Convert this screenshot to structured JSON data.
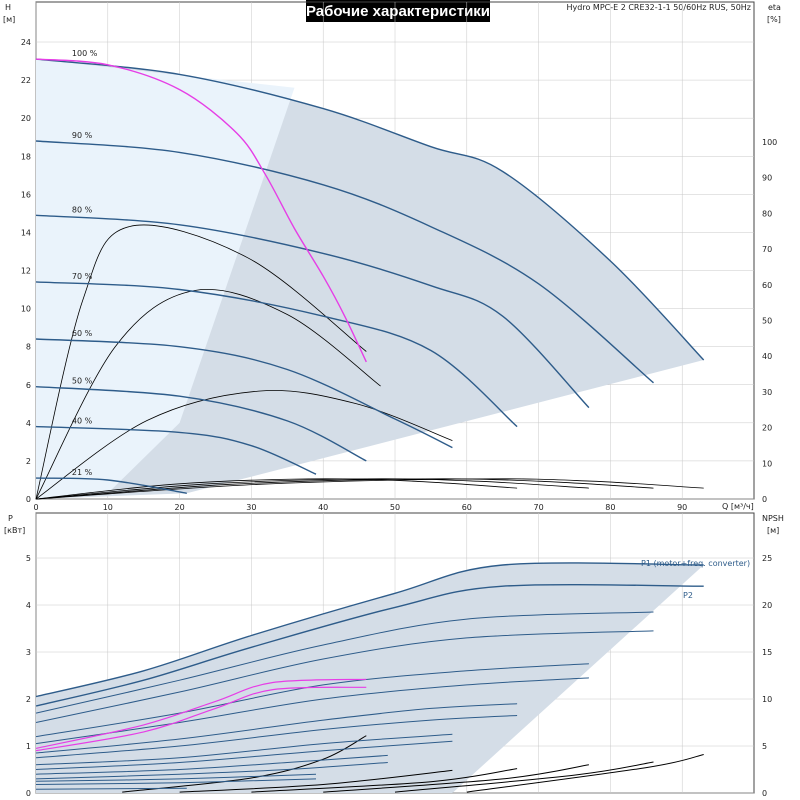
{
  "title": "Рабочие характеристики",
  "model": "Hydro MPC-E 2 CRE32-1-1 50/60Hz RUS, 50Hz",
  "colors": {
    "blue_curve": "#2e5c8a",
    "black_curve": "#000000",
    "magenta": "#e63ee6",
    "fill_dark": "#d4dde7",
    "fill_light": "#eaf3fb",
    "grid": "#c8c8c8"
  },
  "chart_data": [
    {
      "type": "line",
      "name": "head",
      "y_left_label": "H",
      "y_left_unit": "[м]",
      "y_right_label": "eta",
      "y_right_unit": "[%]",
      "x_label": "Q [м³/ч]",
      "xlim": [
        0,
        100
      ],
      "ylim": [
        0,
        24
      ],
      "eta_lim": [
        0,
        100
      ],
      "x_ticks": [
        "0",
        "10",
        "20",
        "30",
        "40",
        "50",
        "60",
        "70",
        "80",
        "90"
      ],
      "y_ticks": [
        "0",
        "2",
        "4",
        "6",
        "8",
        "10",
        "12",
        "14",
        "16",
        "18",
        "20",
        "22",
        "24"
      ],
      "eta_ticks": [
        "0",
        "10",
        "20",
        "30",
        "40",
        "50",
        "60",
        "70",
        "80",
        "90",
        "100"
      ],
      "speed_labels": [
        "100 %",
        "90 %",
        "80 %",
        "70 %",
        "60 %",
        "50 %",
        "40 %",
        "21 %"
      ],
      "speed_curves": [
        {
          "label": "100 %",
          "points": [
            [
              0,
              23.1
            ],
            [
              20,
              22.3
            ],
            [
              40,
              20.5
            ],
            [
              55,
              18.5
            ],
            [
              65,
              17.2
            ],
            [
              80,
              12.5
            ],
            [
              93,
              7.3
            ]
          ]
        },
        {
          "label": "90 %",
          "points": [
            [
              0,
              18.8
            ],
            [
              20,
              18.2
            ],
            [
              40,
              16.5
            ],
            [
              55,
              14.3
            ],
            [
              70,
              11.3
            ],
            [
              86,
              6.1
            ]
          ]
        },
        {
          "label": "80 %",
          "points": [
            [
              0,
              14.9
            ],
            [
              20,
              14.4
            ],
            [
              40,
              12.9
            ],
            [
              55,
              11.2
            ],
            [
              65,
              9.6
            ],
            [
              77,
              4.8
            ]
          ]
        },
        {
          "label": "70 %",
          "points": [
            [
              0,
              11.4
            ],
            [
              20,
              11.0
            ],
            [
              40,
              9.6
            ],
            [
              55,
              7.8
            ],
            [
              67,
              3.8
            ]
          ]
        },
        {
          "label": "60 %",
          "points": [
            [
              0,
              8.4
            ],
            [
              20,
              8.0
            ],
            [
              35,
              6.8
            ],
            [
              50,
              4.2
            ],
            [
              58,
              2.7
            ]
          ]
        },
        {
          "label": "50 %",
          "points": [
            [
              0,
              5.9
            ],
            [
              20,
              5.4
            ],
            [
              35,
              4.1
            ],
            [
              46,
              2.0
            ]
          ]
        },
        {
          "label": "40 %",
          "points": [
            [
              0,
              3.8
            ],
            [
              20,
              3.5
            ],
            [
              30,
              2.8
            ],
            [
              39,
              1.3
            ]
          ]
        },
        {
          "label": "21 %",
          "points": [
            [
              0,
              1.1
            ],
            [
              10,
              1.0
            ],
            [
              21,
              0.3
            ]
          ]
        }
      ],
      "bep_line": {
        "points": [
          [
            0,
            23.1
          ],
          [
            10,
            22.8
          ],
          [
            20,
            21.5
          ],
          [
            28,
            19.2
          ],
          [
            32,
            17.0
          ],
          [
            36,
            14.2
          ],
          [
            40,
            11.7
          ],
          [
            43,
            9.6
          ],
          [
            46,
            7.2
          ]
        ]
      }
    },
    {
      "type": "line",
      "name": "power",
      "y_left_label": "P",
      "y_left_unit": "[кВт]",
      "y_right_label": "NPSH",
      "y_right_unit": "[м]",
      "xlim": [
        0,
        100
      ],
      "ylim": [
        0,
        5
      ],
      "npsh_lim": [
        0,
        25
      ],
      "y_ticks": [
        "0",
        "1",
        "2",
        "3",
        "4",
        "5"
      ],
      "npsh_ticks": [
        "0",
        "5",
        "10",
        "15",
        "20",
        "25"
      ],
      "legend": [
        "P1 (motor+freq. converter)",
        "P2"
      ],
      "p1_curve": {
        "points": [
          [
            0,
            2.05
          ],
          [
            15,
            2.6
          ],
          [
            30,
            3.35
          ],
          [
            50,
            4.25
          ],
          [
            65,
            4.85
          ],
          [
            93,
            4.85
          ]
        ]
      },
      "p2_curve": {
        "points": [
          [
            0,
            1.85
          ],
          [
            15,
            2.4
          ],
          [
            30,
            3.1
          ],
          [
            50,
            3.95
          ],
          [
            65,
            4.4
          ],
          [
            93,
            4.4
          ]
        ]
      },
      "power_curves": [
        {
          "points": [
            [
              0,
              1.7
            ],
            [
              20,
              2.4
            ],
            [
              40,
              3.15
            ],
            [
              60,
              3.7
            ],
            [
              86,
              3.85
            ]
          ]
        },
        {
          "points": [
            [
              0,
              1.5
            ],
            [
              20,
              2.15
            ],
            [
              40,
              2.85
            ],
            [
              60,
              3.3
            ],
            [
              86,
              3.45
            ]
          ]
        },
        {
          "points": [
            [
              0,
              1.2
            ],
            [
              20,
              1.7
            ],
            [
              40,
              2.3
            ],
            [
              60,
              2.6
            ],
            [
              77,
              2.75
            ]
          ]
        },
        {
          "points": [
            [
              0,
              1.05
            ],
            [
              20,
              1.5
            ],
            [
              40,
              2.0
            ],
            [
              60,
              2.3
            ],
            [
              77,
              2.45
            ]
          ]
        },
        {
          "points": [
            [
              0,
              0.85
            ],
            [
              20,
              1.15
            ],
            [
              40,
              1.55
            ],
            [
              55,
              1.8
            ],
            [
              67,
              1.9
            ]
          ]
        },
        {
          "points": [
            [
              0,
              0.75
            ],
            [
              20,
              1.0
            ],
            [
              40,
              1.35
            ],
            [
              55,
              1.55
            ],
            [
              67,
              1.65
            ]
          ]
        },
        {
          "points": [
            [
              0,
              0.6
            ],
            [
              20,
              0.75
            ],
            [
              40,
              1.05
            ],
            [
              58,
              1.25
            ]
          ]
        },
        {
          "points": [
            [
              0,
              0.5
            ],
            [
              20,
              0.65
            ],
            [
              40,
              0.9
            ],
            [
              58,
              1.1
            ]
          ]
        },
        {
          "points": [
            [
              0,
              0.4
            ],
            [
              20,
              0.5
            ],
            [
              35,
              0.65
            ],
            [
              49,
              0.8
            ]
          ]
        },
        {
          "points": [
            [
              0,
              0.3
            ],
            [
              20,
              0.4
            ],
            [
              35,
              0.5
            ],
            [
              49,
              0.65
            ]
          ]
        },
        {
          "points": [
            [
              0,
              0.25
            ],
            [
              20,
              0.3
            ],
            [
              39,
              0.4
            ]
          ]
        },
        {
          "points": [
            [
              0,
              0.18
            ],
            [
              20,
              0.22
            ],
            [
              39,
              0.3
            ]
          ]
        },
        {
          "points": [
            [
              0,
              0.08
            ],
            [
              21,
              0.1
            ]
          ]
        }
      ],
      "npsh_curves": [
        {
          "points": [
            [
              12,
              0.1
            ],
            [
              30,
              1.6
            ],
            [
              40,
              3.6
            ],
            [
              46,
              6.1
            ]
          ]
        },
        {
          "points": [
            [
              20,
              0.1
            ],
            [
              40,
              0.9
            ],
            [
              58,
              2.4
            ]
          ]
        },
        {
          "points": [
            [
              30,
              0.1
            ],
            [
              55,
              1.2
            ],
            [
              67,
              2.6
            ]
          ]
        },
        {
          "points": [
            [
              40,
              0.1
            ],
            [
              65,
              1.5
            ],
            [
              77,
              3.0
            ]
          ]
        },
        {
          "points": [
            [
              50,
              0.1
            ],
            [
              75,
              1.9
            ],
            [
              86,
              3.3
            ]
          ]
        },
        {
          "points": [
            [
              60,
              0.1
            ],
            [
              85,
              2.7
            ],
            [
              93,
              4.1
            ]
          ]
        }
      ],
      "magenta_p1": {
        "points": [
          [
            0,
            0.95
          ],
          [
            15,
            1.45
          ],
          [
            25,
            1.95
          ],
          [
            33,
            2.35
          ],
          [
            46,
            2.42
          ]
        ]
      },
      "magenta_p2": {
        "points": [
          [
            0,
            0.9
          ],
          [
            15,
            1.3
          ],
          [
            25,
            1.8
          ],
          [
            33,
            2.2
          ],
          [
            46,
            2.25
          ]
        ]
      }
    }
  ]
}
